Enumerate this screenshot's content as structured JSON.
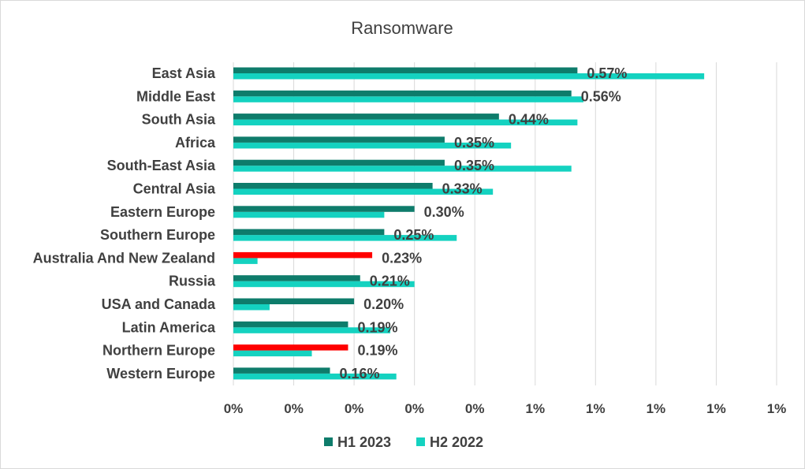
{
  "chart_data": {
    "type": "bar",
    "orientation": "horizontal",
    "title": "Ransomware",
    "categories": [
      "East Asia",
      "Middle East",
      "South Asia",
      "Africa",
      "South-East Asia",
      "Central Asia",
      "Eastern Europe",
      "Southern Europe",
      "Australia And New Zealand",
      "Russia",
      "USA and Canada",
      "Latin America",
      "Northern Europe",
      "Western Europe"
    ],
    "series": [
      {
        "name": "H1 2023",
        "color": "#0e7c6b",
        "values": [
          0.57,
          0.56,
          0.44,
          0.35,
          0.35,
          0.33,
          0.3,
          0.25,
          0.23,
          0.21,
          0.2,
          0.19,
          0.19,
          0.16
        ],
        "labels": [
          "0.57%",
          "0.56%",
          "0.44%",
          "0.35%",
          "0.35%",
          "0.33%",
          "0.30%",
          "0.25%",
          "0.23%",
          "0.21%",
          "0.20%",
          "0.19%",
          "0.19%",
          "0.16%"
        ]
      },
      {
        "name": "H2 2022",
        "color": "#14d2c0",
        "values": [
          0.78,
          0.58,
          0.57,
          0.46,
          0.56,
          0.43,
          0.25,
          0.37,
          0.04,
          0.3,
          0.06,
          0.26,
          0.13,
          0.27
        ]
      }
    ],
    "highlight_color": "#ff0000",
    "highlight_categories": [
      "Australia And New Zealand",
      "Northern Europe"
    ],
    "xlim": [
      0,
      0.9
    ],
    "xticks": [
      0,
      0.1,
      0.2,
      0.3,
      0.4,
      0.5,
      0.6,
      0.7,
      0.8,
      0.9
    ],
    "xtick_labels": [
      "0%",
      "0%",
      "0%",
      "0%",
      "0%",
      "1%",
      "1%",
      "1%",
      "1%",
      "1%"
    ],
    "xlabel": "",
    "ylabel": "",
    "grid": "vertical",
    "legend_position": "bottom"
  }
}
